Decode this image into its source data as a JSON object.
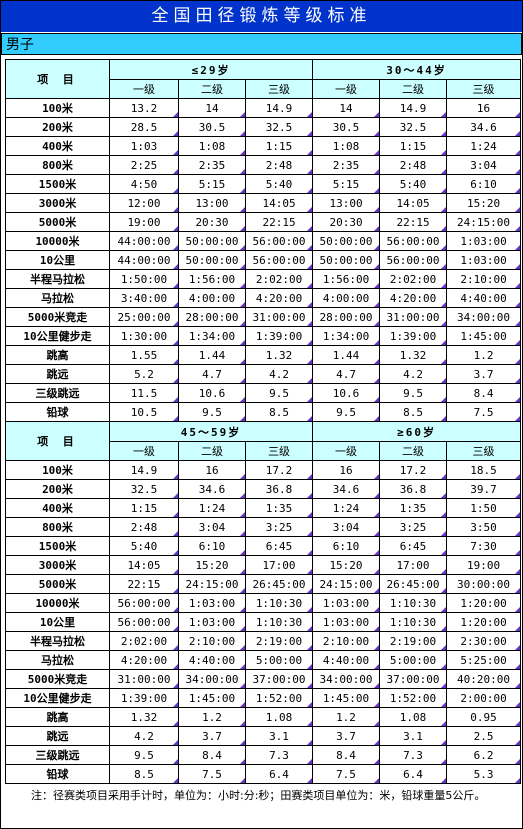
{
  "title": "全国田径锻炼等级标准",
  "gender": "男子",
  "event_header": "项 目",
  "level_labels": [
    "一级",
    "二级",
    "三级"
  ],
  "sections": [
    {
      "age_groups": [
        "≤29岁",
        "30～44岁"
      ],
      "rows": [
        {
          "event": "100米",
          "values": [
            "13.2",
            "14",
            "14.9",
            "14",
            "14.9",
            "16"
          ]
        },
        {
          "event": "200米",
          "values": [
            "28.5",
            "30.5",
            "32.5",
            "30.5",
            "32.5",
            "34.6"
          ]
        },
        {
          "event": "400米",
          "values": [
            "1:03",
            "1:08",
            "1:15",
            "1:08",
            "1:15",
            "1:24"
          ]
        },
        {
          "event": "800米",
          "values": [
            "2:25",
            "2:35",
            "2:48",
            "2:35",
            "2:48",
            "3:04"
          ]
        },
        {
          "event": "1500米",
          "values": [
            "4:50",
            "5:15",
            "5:40",
            "5:15",
            "5:40",
            "6:10"
          ]
        },
        {
          "event": "3000米",
          "values": [
            "12:00",
            "13:00",
            "14:05",
            "13:00",
            "14:05",
            "15:20"
          ]
        },
        {
          "event": "5000米",
          "values": [
            "19:00",
            "20:30",
            "22:15",
            "20:30",
            "22:15",
            "24:15:00"
          ]
        },
        {
          "event": "10000米",
          "values": [
            "44:00:00",
            "50:00:00",
            "56:00:00",
            "50:00:00",
            "56:00:00",
            "1:03:00"
          ]
        },
        {
          "event": "10公里",
          "values": [
            "44:00:00",
            "50:00:00",
            "56:00:00",
            "50:00:00",
            "56:00:00",
            "1:03:00"
          ]
        },
        {
          "event": "半程马拉松",
          "values": [
            "1:50:00",
            "1:56:00",
            "2:02:00",
            "1:56:00",
            "2:02:00",
            "2:10:00"
          ]
        },
        {
          "event": "马拉松",
          "values": [
            "3:40:00",
            "4:00:00",
            "4:20:00",
            "4:00:00",
            "4:20:00",
            "4:40:00"
          ]
        },
        {
          "event": "5000米竞走",
          "values": [
            "25:00:00",
            "28:00:00",
            "31:00:00",
            "28:00:00",
            "31:00:00",
            "34:00:00"
          ]
        },
        {
          "event": "10公里健步走",
          "values": [
            "1:30:00",
            "1:34:00",
            "1:39:00",
            "1:34:00",
            "1:39:00",
            "1:45:00"
          ]
        },
        {
          "event": "跳高",
          "values": [
            "1.55",
            "1.44",
            "1.32",
            "1.44",
            "1.32",
            "1.2"
          ]
        },
        {
          "event": "跳远",
          "values": [
            "5.2",
            "4.7",
            "4.2",
            "4.7",
            "4.2",
            "3.7"
          ]
        },
        {
          "event": "三级跳远",
          "values": [
            "11.5",
            "10.6",
            "9.5",
            "10.6",
            "9.5",
            "8.4"
          ]
        },
        {
          "event": "铅球",
          "values": [
            "10.5",
            "9.5",
            "8.5",
            "9.5",
            "8.5",
            "7.5"
          ]
        }
      ]
    },
    {
      "age_groups": [
        "45～59岁",
        "≥60岁"
      ],
      "rows": [
        {
          "event": "100米",
          "values": [
            "14.9",
            "16",
            "17.2",
            "16",
            "17.2",
            "18.5"
          ]
        },
        {
          "event": "200米",
          "values": [
            "32.5",
            "34.6",
            "36.8",
            "34.6",
            "36.8",
            "39.7"
          ]
        },
        {
          "event": "400米",
          "values": [
            "1:15",
            "1:24",
            "1:35",
            "1:24",
            "1:35",
            "1:50"
          ]
        },
        {
          "event": "800米",
          "values": [
            "2:48",
            "3:04",
            "3:25",
            "3:04",
            "3:25",
            "3:50"
          ]
        },
        {
          "event": "1500米",
          "values": [
            "5:40",
            "6:10",
            "6:45",
            "6:10",
            "6:45",
            "7:30"
          ]
        },
        {
          "event": "3000米",
          "values": [
            "14:05",
            "15:20",
            "17:00",
            "15:20",
            "17:00",
            "19:00"
          ]
        },
        {
          "event": "5000米",
          "values": [
            "22:15",
            "24:15:00",
            "26:45:00",
            "24:15:00",
            "26:45:00",
            "30:00:00"
          ]
        },
        {
          "event": "10000米",
          "values": [
            "56:00:00",
            "1:03:00",
            "1:10:30",
            "1:03:00",
            "1:10:30",
            "1:20:00"
          ]
        },
        {
          "event": "10公里",
          "values": [
            "56:00:00",
            "1:03:00",
            "1:10:30",
            "1:03:00",
            "1:10:30",
            "1:20:00"
          ]
        },
        {
          "event": "半程马拉松",
          "values": [
            "2:02:00",
            "2:10:00",
            "2:19:00",
            "2:10:00",
            "2:19:00",
            "2:30:00"
          ]
        },
        {
          "event": "马拉松",
          "values": [
            "4:20:00",
            "4:40:00",
            "5:00:00",
            "4:40:00",
            "5:00:00",
            "5:25:00"
          ]
        },
        {
          "event": "5000米竞走",
          "values": [
            "31:00:00",
            "34:00:00",
            "37:00:00",
            "34:00:00",
            "37:00:00",
            "40:20:00"
          ]
        },
        {
          "event": "10公里健步走",
          "values": [
            "1:39:00",
            "1:45:00",
            "1:52:00",
            "1:45:00",
            "1:52:00",
            "2:00:00"
          ]
        },
        {
          "event": "跳高",
          "values": [
            "1.32",
            "1.2",
            "1.08",
            "1.2",
            "1.08",
            "0.95"
          ]
        },
        {
          "event": "跳远",
          "values": [
            "4.2",
            "3.7",
            "3.1",
            "3.7",
            "3.1",
            "2.5"
          ]
        },
        {
          "event": "三级跳远",
          "values": [
            "9.5",
            "8.4",
            "7.3",
            "8.4",
            "7.3",
            "6.2"
          ]
        },
        {
          "event": "铅球",
          "values": [
            "8.5",
            "7.5",
            "6.4",
            "7.5",
            "6.4",
            "5.3"
          ]
        }
      ]
    }
  ],
  "note": "注：径赛类项目采用手计时，单位为：小时:分:秒；田赛类项目单位为：米，铅球重量5公斤。",
  "colors": {
    "title_bg": "#0033cc",
    "gender_bg": "#33ccff",
    "header_bg": "#ccffff",
    "comment_marker": "#6633cc"
  }
}
